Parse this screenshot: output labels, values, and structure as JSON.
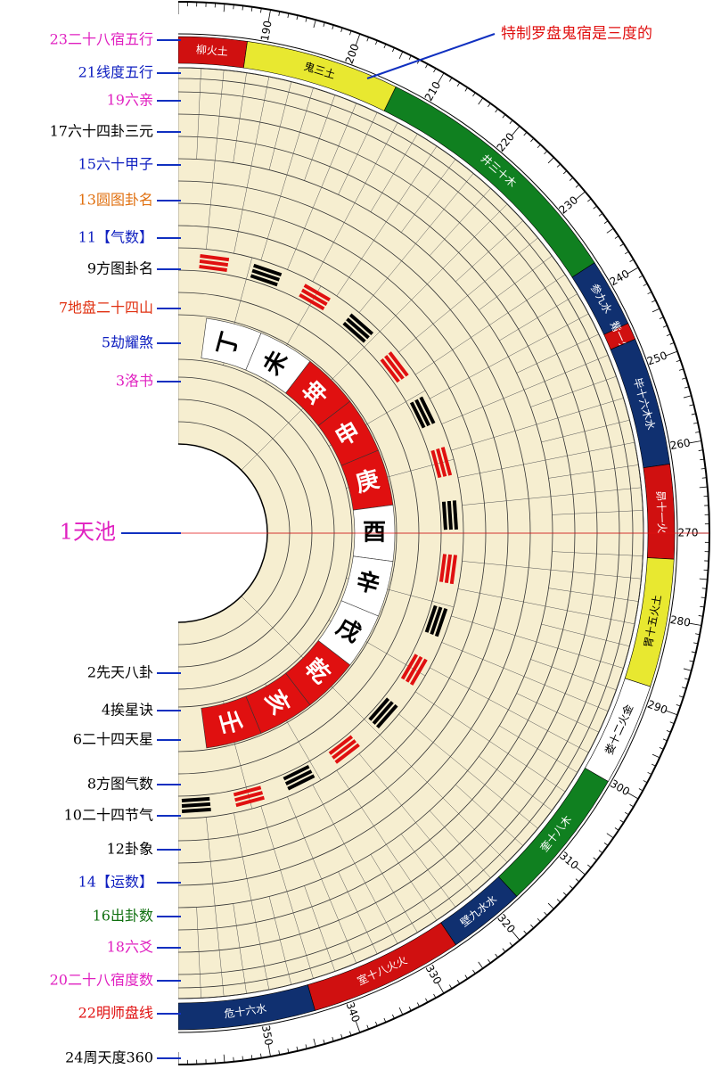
{
  "annotation": "特制罗盘鬼宿是三度的",
  "layers": [
    {
      "label": "23二十八宿五行",
      "color": "#e020c0"
    },
    {
      "label": "21线度五行",
      "color": "#1020c0"
    },
    {
      "label": "19六亲",
      "color": "#e020c0"
    },
    {
      "label": "17六十四卦三元",
      "color": "#000000"
    },
    {
      "label": "15六十甲子",
      "color": "#1020c0"
    },
    {
      "label": "13圆图卦名",
      "color": "#e07010"
    },
    {
      "label": "11【气数】",
      "color": "#1020c0"
    },
    {
      "label": "9方图卦名",
      "color": "#000000"
    },
    {
      "label": "7地盘二十四山",
      "color": "#e03010"
    },
    {
      "label": "5劫耀煞",
      "color": "#1020c0"
    },
    {
      "label": "3洛书",
      "color": "#e020c0"
    },
    {
      "label": "1天池",
      "color": "#e020c0"
    },
    {
      "label": "2先天八卦",
      "color": "#000000"
    },
    {
      "label": "4挨星诀",
      "color": "#000000"
    },
    {
      "label": "6二十四天星",
      "color": "#000000"
    },
    {
      "label": "8方图气数",
      "color": "#000000"
    },
    {
      "label": "10二十四节气",
      "color": "#000000"
    },
    {
      "label": "12卦象",
      "color": "#000000"
    },
    {
      "label": "14【运数】",
      "color": "#1020c0"
    },
    {
      "label": "16出卦数",
      "color": "#107010"
    },
    {
      "label": "18六爻",
      "color": "#e020c0"
    },
    {
      "label": "20二十八宿度数",
      "color": "#e020c0"
    },
    {
      "label": "22明师盘线",
      "color": "#e01010"
    },
    {
      "label": "24周天度360",
      "color": "#000000"
    }
  ],
  "degrees": [
    190,
    200,
    210,
    220,
    230,
    240,
    250,
    260,
    270,
    280,
    290,
    300,
    310,
    320,
    330,
    340,
    350
  ],
  "mansions": [
    {
      "label": "柳火土",
      "color": "#d01010"
    },
    {
      "label": "鬼三土",
      "color": "#e8e830"
    },
    {
      "label": "井三十木",
      "color": "#108020"
    },
    {
      "label": "参九水",
      "color": "#103070"
    },
    {
      "label": "觜一火",
      "color": "#d01010"
    },
    {
      "label": "毕十六木水",
      "color": "#103070"
    },
    {
      "label": "昴十一火",
      "color": "#d01010"
    },
    {
      "label": "胃十五火土",
      "color": "#e8e830"
    },
    {
      "label": "娄十二火金",
      "color": "#ffffff"
    },
    {
      "label": "奎十八木",
      "color": "#108020"
    },
    {
      "label": "壁九水水",
      "color": "#103070"
    },
    {
      "label": "室十八火火",
      "color": "#d01010"
    },
    {
      "label": "危十六水",
      "color": "#103070"
    }
  ],
  "mountains": [
    {
      "label": "丁",
      "color": "#ffffff"
    },
    {
      "label": "未",
      "color": "#ffffff"
    },
    {
      "label": "坤",
      "color": "#e01010"
    },
    {
      "label": "申",
      "color": "#e01010"
    },
    {
      "label": "庚",
      "color": "#e01010"
    },
    {
      "label": "酉",
      "color": "#ffffff"
    },
    {
      "label": "辛",
      "color": "#ffffff"
    },
    {
      "label": "戌",
      "color": "#ffffff"
    },
    {
      "label": "乾",
      "color": "#e01010"
    },
    {
      "label": "亥",
      "color": "#e01010"
    },
    {
      "label": "壬",
      "color": "#e01010"
    }
  ]
}
